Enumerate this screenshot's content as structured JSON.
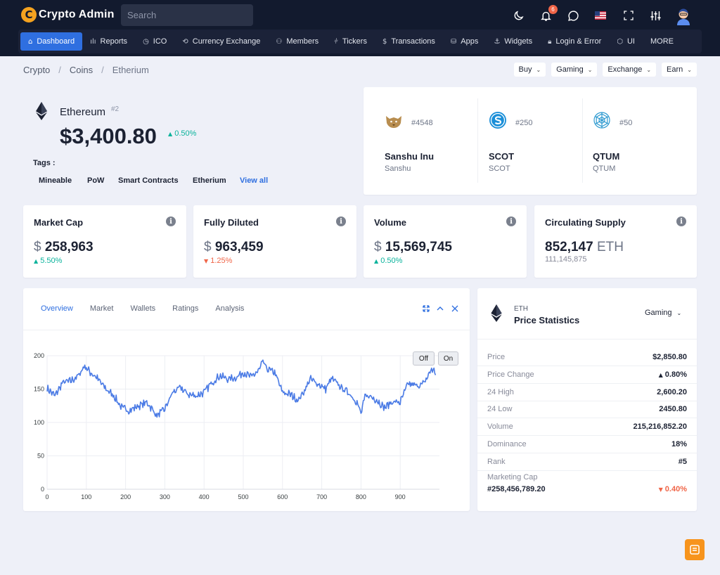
{
  "app": {
    "logo_letter": "C",
    "title": "Crypto Admin",
    "search_placeholder": "Search",
    "notification_count": "6"
  },
  "nav": [
    {
      "label": "Dashboard",
      "icon": "home-icon",
      "glyph": "⌂",
      "active": true
    },
    {
      "label": "Reports",
      "icon": "bar-chart-icon",
      "glyph": "ılı"
    },
    {
      "label": "ICO",
      "icon": "clock-icon",
      "glyph": "◷"
    },
    {
      "label": "Currency Exchange",
      "icon": "refresh-icon",
      "glyph": "⟲"
    },
    {
      "label": "Members",
      "icon": "users-icon",
      "glyph": "⚇"
    },
    {
      "label": "Tickers",
      "icon": "sliders-icon",
      "glyph": "⫩"
    },
    {
      "label": "Transactions",
      "icon": "dollar-icon",
      "glyph": "$"
    },
    {
      "label": "Apps",
      "icon": "database-icon",
      "glyph": "⛁"
    },
    {
      "label": "Widgets",
      "icon": "anchor-icon",
      "glyph": "⚓"
    },
    {
      "label": "Login & Error",
      "icon": "lock-icon",
      "glyph": "🔒︎"
    },
    {
      "label": "UI",
      "icon": "box-icon",
      "glyph": "⬡"
    },
    {
      "label": "MORE",
      "icon": "",
      "glyph": ""
    }
  ],
  "breadcrumb": [
    "Crypto",
    "Coins",
    "Etherium"
  ],
  "actions": [
    "Buy",
    "Gaming",
    "Exchange",
    "Earn"
  ],
  "coin": {
    "name": "Ethereum",
    "rank": "#2",
    "price": "$3,400.80",
    "change": "0.50%",
    "tags_label": "Tags :",
    "tags": [
      "Mineable",
      "PoW",
      "Smart Contracts",
      "Etherium"
    ],
    "view_all": "View all"
  },
  "trending": [
    {
      "rank": "#4548",
      "name": "Sanshu Inu",
      "symbol": "Sanshu",
      "icon": "sanshu-logo-icon",
      "color": "#b88d4f"
    },
    {
      "rank": "#250",
      "name": "SCOT",
      "symbol": "SCOT",
      "icon": "scot-logo-icon",
      "color": "#1b8fd8"
    },
    {
      "rank": "#50",
      "name": "QTUM",
      "symbol": "QTUM",
      "icon": "qtum-logo-icon",
      "color": "#2e9ad0"
    }
  ],
  "stats": [
    {
      "title": "Market Cap",
      "currency": "$",
      "value": "258,963",
      "unit": "",
      "sub": "5.50%",
      "dir": "up"
    },
    {
      "title": "Fully Diluted",
      "currency": "$",
      "value": "963,459",
      "unit": "",
      "sub": "1.25%",
      "dir": "down"
    },
    {
      "title": "Volume",
      "currency": "$",
      "value": "15,569,745",
      "unit": "",
      "sub": "0.50%",
      "dir": "up"
    },
    {
      "title": "Circulating Supply",
      "currency": "",
      "value": "852,147",
      "unit": "ETH",
      "sub": "111,145,875",
      "dir": "none"
    }
  ],
  "chart_panel": {
    "tabs": [
      "Overview",
      "Market",
      "Wallets",
      "Ratings",
      "Analysis"
    ],
    "active_tab": "Overview",
    "btn_off": "Off",
    "btn_on": "On"
  },
  "chart_data": {
    "type": "line",
    "x_ticks": [
      0,
      100,
      200,
      300,
      400,
      500,
      600,
      700,
      800,
      900
    ],
    "y_ticks": [
      0,
      50,
      100,
      150,
      200
    ],
    "xlim": [
      0,
      1000
    ],
    "ylim": [
      0,
      200
    ],
    "color": "#4b7be5",
    "anchors": [
      [
        0,
        151
      ],
      [
        20,
        140
      ],
      [
        40,
        160
      ],
      [
        60,
        162
      ],
      [
        80,
        170
      ],
      [
        95,
        185
      ],
      [
        110,
        175
      ],
      [
        125,
        168
      ],
      [
        150,
        150
      ],
      [
        170,
        140
      ],
      [
        190,
        122
      ],
      [
        210,
        118
      ],
      [
        230,
        124
      ],
      [
        255,
        130
      ],
      [
        280,
        110
      ],
      [
        300,
        120
      ],
      [
        320,
        145
      ],
      [
        340,
        152
      ],
      [
        360,
        142
      ],
      [
        380,
        140
      ],
      [
        400,
        145
      ],
      [
        420,
        160
      ],
      [
        440,
        170
      ],
      [
        460,
        165
      ],
      [
        480,
        167
      ],
      [
        500,
        175
      ],
      [
        520,
        168
      ],
      [
        540,
        178
      ],
      [
        550,
        191
      ],
      [
        560,
        180
      ],
      [
        580,
        175
      ],
      [
        600,
        145
      ],
      [
        620,
        142
      ],
      [
        640,
        133
      ],
      [
        660,
        152
      ],
      [
        670,
        165
      ],
      [
        690,
        158
      ],
      [
        710,
        150
      ],
      [
        725,
        166
      ],
      [
        750,
        152
      ],
      [
        770,
        144
      ],
      [
        790,
        130
      ],
      [
        800,
        113
      ],
      [
        810,
        138
      ],
      [
        820,
        140
      ],
      [
        840,
        134
      ],
      [
        860,
        122
      ],
      [
        880,
        131
      ],
      [
        900,
        130
      ],
      [
        920,
        158
      ],
      [
        940,
        155
      ],
      [
        960,
        158
      ],
      [
        980,
        180
      ],
      [
        990,
        175
      ]
    ]
  },
  "price_stats": {
    "symbol": "ETH",
    "title": "Price Statistics",
    "dropdown": "Gaming",
    "rows": [
      {
        "label": "Price",
        "value": "$2,850.80",
        "dir": "none"
      },
      {
        "label": "Price Change",
        "value": "0.80%",
        "dir": "up"
      },
      {
        "label": "24 High",
        "value": "2,600.20",
        "dir": "none"
      },
      {
        "label": "24 Low",
        "value": "2450.80",
        "dir": "none"
      },
      {
        "label": "Volume",
        "value": "215,216,852.20",
        "dir": "none"
      },
      {
        "label": "Dominance",
        "value": "18%",
        "dir": "none"
      },
      {
        "label": "Rank",
        "value": "#5",
        "dir": "none"
      }
    ],
    "footer_label": "Marketing Cap",
    "footer_value": "#258,456,789.20",
    "footer_change": "0.40%",
    "footer_dir": "down"
  }
}
